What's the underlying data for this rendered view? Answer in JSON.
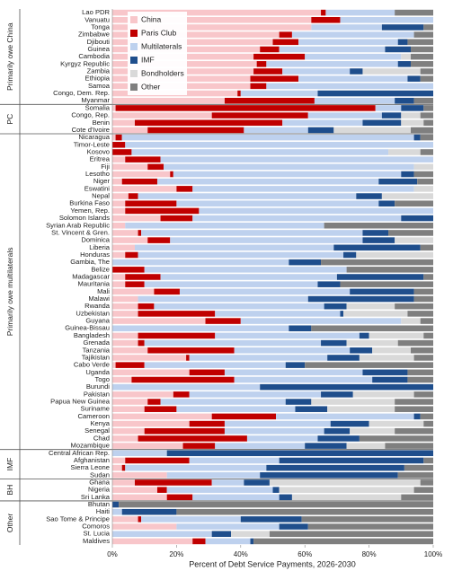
{
  "chart_data": {
    "type": "stacked_barh",
    "xlabel": "Percent of Debt Service Payments, 2026-2030",
    "xlim": [
      0,
      100
    ],
    "xticks": [
      {
        "value": 0,
        "label": "0%"
      },
      {
        "value": 20,
        "label": "20%"
      },
      {
        "value": 40,
        "label": "40%"
      },
      {
        "value": 60,
        "label": "60%"
      },
      {
        "value": 80,
        "label": "80%"
      },
      {
        "value": 100,
        "label": "100%"
      }
    ],
    "legend": "upper left",
    "groups": [
      {
        "label": "Primarily owe China",
        "categories": [
          "Lao PDR",
          "Vanuatu",
          "Tonga",
          "Zimbabwe",
          "Djibouti",
          "Guinea",
          "Cambodia",
          "Kyrgyz Republic",
          "Zambia",
          "Ethiopia",
          "Samoa",
          "Congo, Dem. Rep.",
          "Myanmar"
        ]
      },
      {
        "label": "PC",
        "categories": [
          "Somalia",
          "Congo, Rep.",
          "Benin",
          "Cote d'Ivoire"
        ]
      },
      {
        "label": "Primarily owe multilaterals",
        "categories": [
          "Nicaragua",
          "Timor-Leste",
          "Kosovo",
          "Eritrea",
          "Fiji",
          "Lesotho",
          "Niger",
          "Eswatini",
          "Nepal",
          "Burkina Faso",
          "Yemen, Rep.",
          "Solomon Islands",
          "Syrian Arab Republic",
          "St. Vincent & Gren.",
          "Dominica",
          "Liberia",
          "Honduras",
          "Gambia, The",
          "Belize",
          "Madagascar",
          "Mauritania",
          "Mali",
          "Malawi",
          "Rwanda",
          "Uzbekistan",
          "Guyana",
          "Guinea-Bissau",
          "Bangladesh",
          "Grenada",
          "Tanzania",
          "Tajikistan",
          "Cabo Verde",
          "Uganda",
          "Togo",
          "Burundi",
          "Pakistan",
          "Papua New Guinea",
          "Suriname",
          "Cameroon",
          "Kenya",
          "Senegal",
          "Chad",
          "Mozambique"
        ]
      },
      {
        "label": "IMF",
        "categories": [
          "Central African Rep.",
          "Afghanistan",
          "Sierra Leone",
          "Sudan"
        ]
      },
      {
        "label": "BH",
        "categories": [
          "Ghana",
          "Nigeria",
          "Sri Lanka"
        ]
      },
      {
        "label": "Other",
        "categories": [
          "Bhutan",
          "Haiti",
          "Sao Tome & Principe",
          "Comoros",
          "St. Lucia",
          "Maldives"
        ]
      }
    ],
    "series": [
      {
        "name": "China",
        "color": "#f8c6ca",
        "values": [
          65,
          62,
          62,
          52,
          50,
          46,
          44,
          45,
          44,
          43,
          43,
          39,
          35,
          1,
          31,
          7,
          11,
          1,
          0,
          0,
          4,
          11,
          18,
          3,
          20,
          5,
          4,
          4,
          15,
          4,
          8,
          11,
          7,
          4,
          0,
          0,
          4,
          4,
          13,
          8,
          8,
          8,
          29,
          0,
          8,
          8,
          11,
          23,
          1,
          24,
          6,
          0,
          19,
          11,
          10,
          31,
          24,
          10,
          8,
          22,
          0,
          4,
          3,
          17,
          7,
          14,
          17,
          0,
          0,
          8,
          20,
          0,
          25
        ]
      },
      {
        "name": "Paris Club",
        "color": "#c00000",
        "values": [
          1.5,
          9,
          0,
          4,
          8,
          6,
          16,
          3,
          9,
          15,
          5,
          1,
          28,
          81,
          30,
          46,
          30,
          2,
          4,
          6,
          11,
          5,
          1,
          11,
          5,
          3,
          16,
          23,
          10,
          0,
          1,
          7,
          0,
          4,
          0,
          10,
          11,
          6,
          8,
          0,
          5,
          24,
          11,
          0,
          24,
          2,
          27,
          1,
          9,
          11,
          32,
          0,
          5,
          4,
          10,
          20,
          11,
          25,
          34,
          10,
          0,
          20,
          1,
          0,
          24,
          3,
          8,
          0,
          0,
          1,
          0,
          0,
          4
        ]
      },
      {
        "name": "Multilaterals",
        "color": "#bed1ee",
        "values": [
          21.5,
          29,
          22,
          38,
          31,
          33,
          30,
          41,
          21,
          34,
          52,
          24,
          25,
          8,
          23,
          25,
          20,
          91,
          96,
          80,
          85,
          78,
          71,
          69,
          69,
          68,
          63,
          73,
          65,
          62,
          69,
          60,
          62,
          64,
          55,
          63,
          55,
          54,
          53,
          53,
          53,
          39,
          50,
          55,
          45,
          55,
          36,
          43,
          44,
          43,
          43,
          46,
          41,
          39,
          37,
          43,
          33,
          31,
          22,
          28,
          17,
          28,
          44,
          29,
          10,
          33,
          27,
          0,
          3,
          31,
          32,
          31,
          14
        ]
      },
      {
        "name": "IMF",
        "color": "#1f4e8c",
        "values": [
          0,
          0,
          13,
          0,
          3,
          8,
          0,
          4,
          4,
          4,
          0,
          36,
          6,
          7,
          6,
          12,
          8,
          2,
          0,
          0,
          0,
          0,
          4,
          12,
          0,
          8,
          5,
          0,
          10,
          0,
          8,
          10,
          27,
          4,
          10,
          0,
          27,
          7,
          20,
          33,
          7,
          1,
          0,
          7,
          3,
          8,
          7,
          10,
          6,
          14,
          11,
          54,
          10,
          8,
          10,
          2,
          12,
          8,
          13,
          13,
          83,
          45,
          43,
          43,
          8,
          2,
          4,
          2,
          17,
          19,
          9,
          6,
          1
        ]
      },
      {
        "name": "Bondholders",
        "color": "#d9d9d9",
        "values": [
          0,
          0,
          0,
          0,
          0,
          0,
          3,
          0,
          18,
          0,
          0,
          0,
          0,
          0,
          6,
          7,
          24,
          0,
          0,
          10,
          0,
          6,
          0,
          0,
          6,
          16,
          0,
          0,
          0,
          0,
          0,
          12,
          0,
          24,
          0,
          0,
          0,
          0,
          0,
          0,
          15,
          20,
          6,
          0,
          17,
          16,
          12,
          17,
          0,
          0,
          0,
          0,
          19,
          26,
          21,
          0,
          17,
          14,
          0,
          12,
          0,
          0,
          0,
          0,
          47,
          42,
          34,
          0,
          0,
          0,
          0,
          12,
          0
        ]
      },
      {
        "name": "Other",
        "color": "#7f7f7f",
        "values": [
          12,
          0,
          3,
          6,
          8,
          7,
          7,
          7,
          4,
          4,
          0,
          0,
          6,
          3,
          4,
          3,
          7,
          4,
          0,
          4,
          0,
          0,
          6,
          5,
          0,
          0,
          12,
          0,
          0,
          34,
          14,
          0,
          4,
          0,
          35,
          27,
          3,
          29,
          6,
          6,
          12,
          8,
          4,
          38,
          3,
          11,
          7,
          6,
          40,
          8,
          8,
          0,
          6,
          12,
          12,
          4,
          3,
          12,
          23,
          15,
          0,
          3,
          9,
          11,
          4,
          6,
          10,
          98,
          80,
          41,
          39,
          51,
          56
        ]
      }
    ]
  }
}
